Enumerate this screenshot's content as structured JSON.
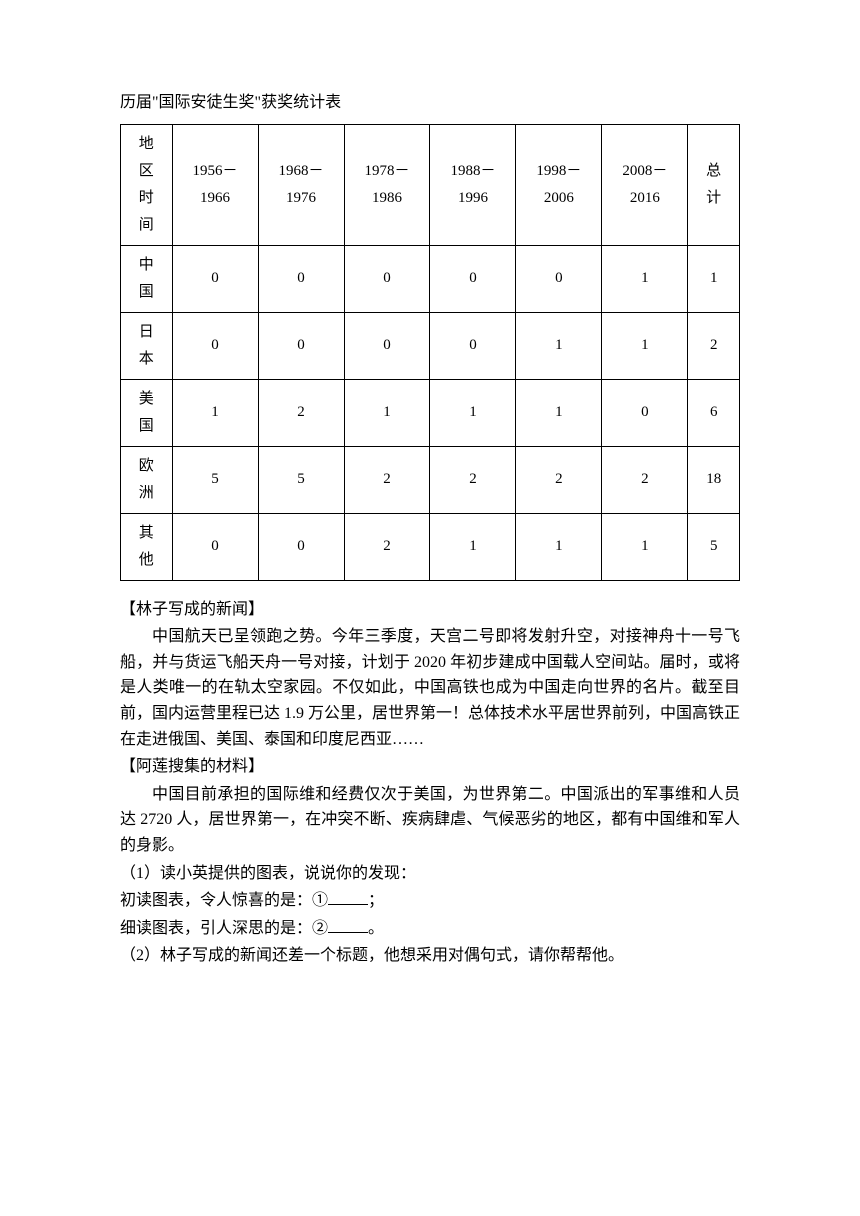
{
  "title": "历届\"国际安徒生奖\"获奖统计表",
  "table": {
    "header_row": {
      "region_time": "地区时间",
      "periods": [
        "1956－1966",
        "1968－1976",
        "1978－1986",
        "1988－1996",
        "1998－2006",
        "2008－2016"
      ],
      "total": "总计"
    },
    "rows": [
      {
        "region": "中国",
        "values": [
          "0",
          "0",
          "0",
          "0",
          "0",
          "1"
        ],
        "total": "1"
      },
      {
        "region": "日本",
        "values": [
          "0",
          "0",
          "0",
          "0",
          "1",
          "1"
        ],
        "total": "2"
      },
      {
        "region": "美国",
        "values": [
          "1",
          "2",
          "1",
          "1",
          "1",
          "0"
        ],
        "total": "6"
      },
      {
        "region": "欧洲",
        "values": [
          "5",
          "5",
          "2",
          "2",
          "2",
          "2"
        ],
        "total": "18"
      },
      {
        "region": "其他",
        "values": [
          "0",
          "0",
          "2",
          "1",
          "1",
          "1"
        ],
        "total": "5"
      }
    ]
  },
  "section1": {
    "heading": "【林子写成的新闻】",
    "paragraph": "中国航天已呈领跑之势。今年三季度，天宫二号即将发射升空，对接神舟十一号飞船，并与货运飞船天舟一号对接，计划于 2020 年初步建成中国载人空间站。届时，或将是人类唯一的在轨太空家园。不仅如此，中国高铁也成为中国走向世界的名片。截至目前，国内运营里程已达 1.9 万公里，居世界第一！总体技术水平居世界前列，中国高铁正在走进俄国、美国、泰国和印度尼西亚……"
  },
  "section2": {
    "heading": "【阿莲搜集的材料】",
    "paragraph": "中国目前承担的国际维和经费仅次于美国，为世界第二。中国派出的军事维和人员达 2720 人，居世界第一，在冲突不断、疾病肆虐、气候恶劣的地区，都有中国维和军人的身影。"
  },
  "questions": {
    "q1": "（1）读小英提供的图表，说说你的发现：",
    "q1a_pre": "初读图表，令人惊喜的是：①",
    "q1a_post": "；",
    "q1b_pre": "细读图表，引人深思的是：②",
    "q1b_post": "。",
    "q2": "（2）林子写成的新闻还差一个标题，他想采用对偶句式，请你帮帮他。"
  }
}
